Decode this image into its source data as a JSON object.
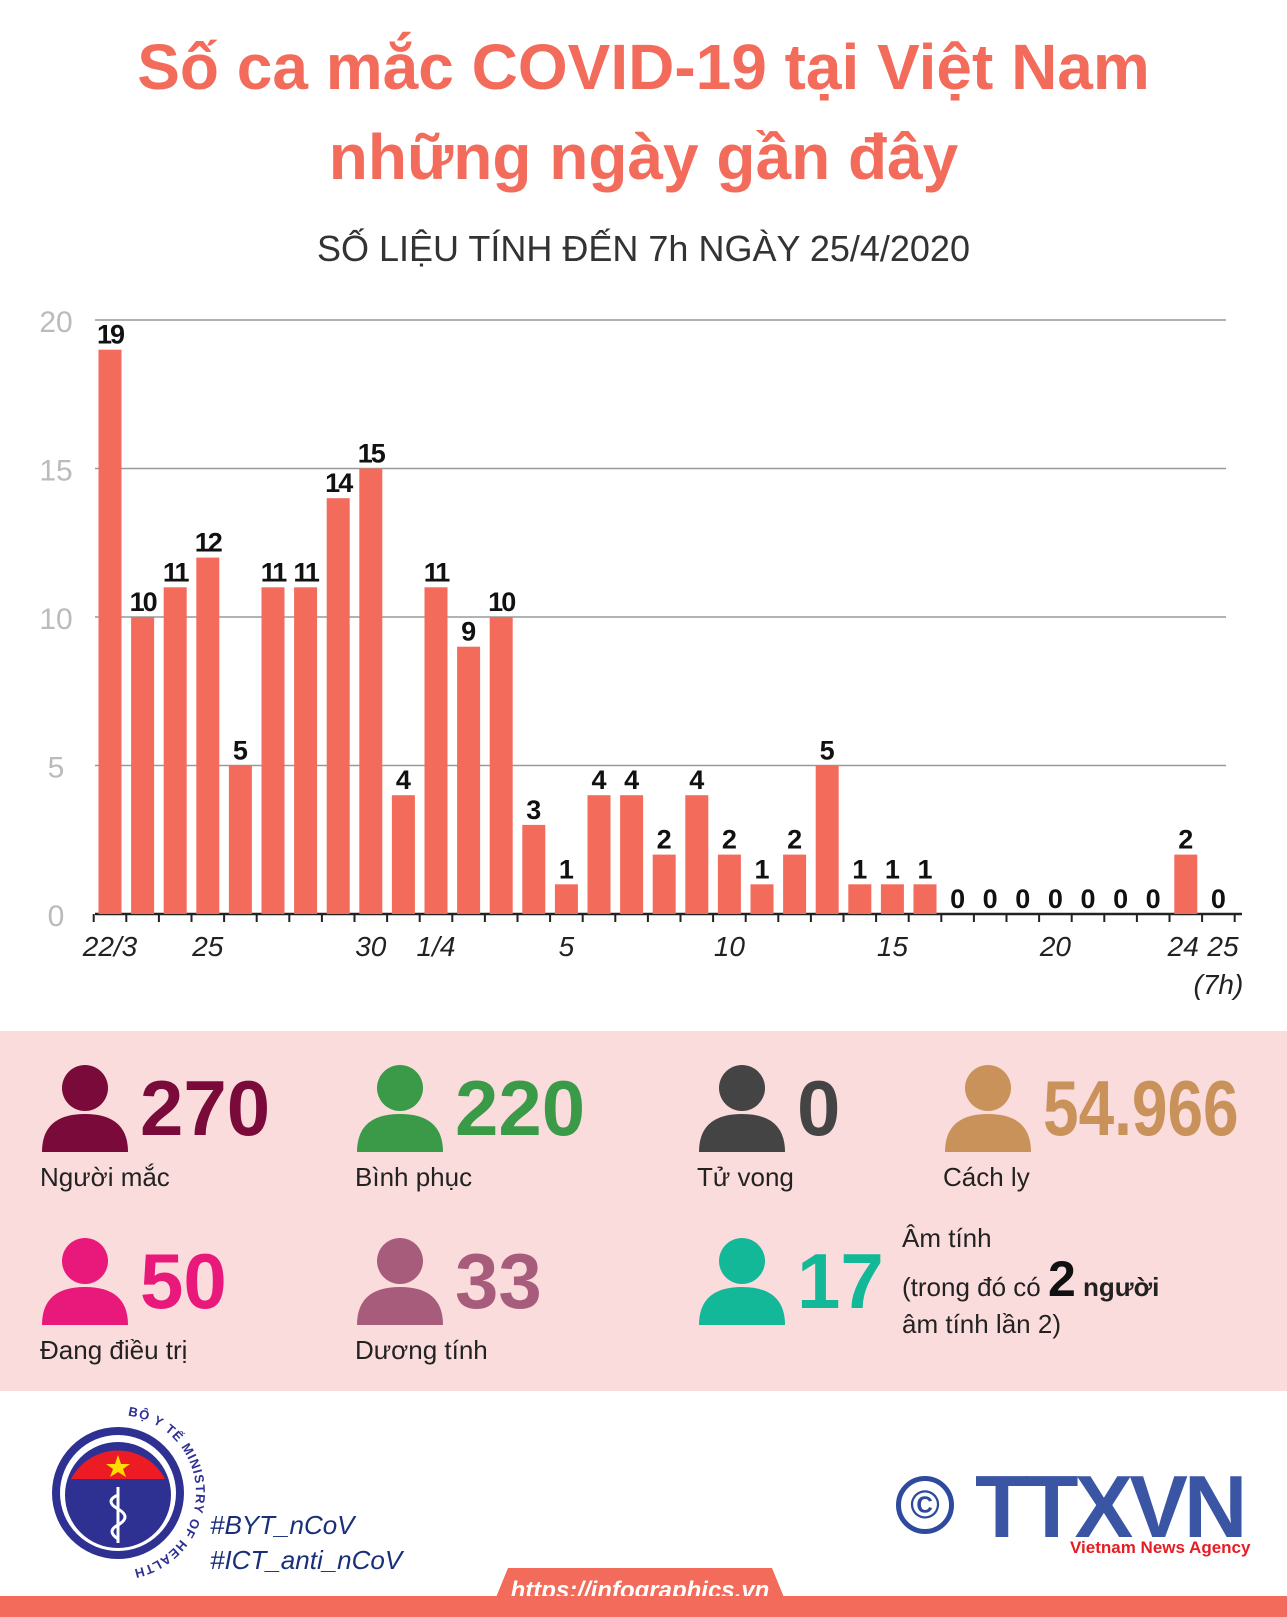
{
  "title_line1": "Số ca mắc COVID-19 tại Việt Nam",
  "title_line2": "những ngày gần đây",
  "subtitle": "SỐ LIỆU TÍNH ĐẾN 7h NGÀY 25/4/2020",
  "chart_data": {
    "type": "bar",
    "categories": [
      "22/3",
      "23/3",
      "24/3",
      "25/3",
      "26/3",
      "27/3",
      "28/3",
      "29/3",
      "30/3",
      "31/3",
      "1/4",
      "2/4",
      "3/4",
      "4/4",
      "5/4",
      "6/4",
      "7/4",
      "8/4",
      "9/4",
      "10/4",
      "11/4",
      "12/4",
      "13/4",
      "14/4",
      "15/4",
      "16/4",
      "17/4",
      "18/4",
      "19/4",
      "20/4",
      "21/4",
      "22/4",
      "23/4",
      "24/4",
      "25/4 (7h)"
    ],
    "values": [
      19,
      10,
      11,
      12,
      5,
      11,
      11,
      14,
      15,
      4,
      11,
      9,
      10,
      3,
      1,
      4,
      4,
      2,
      4,
      2,
      1,
      2,
      5,
      1,
      1,
      1,
      0,
      0,
      0,
      0,
      0,
      0,
      0,
      2,
      0
    ],
    "x_tick_labels": [
      {
        "index": 0,
        "label": "22/3"
      },
      {
        "index": 3,
        "label": "25"
      },
      {
        "index": 8,
        "label": "30"
      },
      {
        "index": 10,
        "label": "1/4"
      },
      {
        "index": 14,
        "label": "5"
      },
      {
        "index": 19,
        "label": "10"
      },
      {
        "index": 24,
        "label": "15"
      },
      {
        "index": 29,
        "label": "20"
      },
      {
        "index": 33,
        "label": "24"
      },
      {
        "index": 34,
        "label": "25"
      }
    ],
    "last_note": "(7h)",
    "y_ticks": [
      0,
      5,
      10,
      15,
      20
    ],
    "ylim": [
      0,
      20
    ],
    "grid": true,
    "bar_color": "#f26b5b"
  },
  "stats": [
    {
      "value": "270",
      "label": "Người mắc",
      "color": "#7a0a3a"
    },
    {
      "value": "220",
      "label": "Bình phục",
      "color": "#3a9a48"
    },
    {
      "value": "0",
      "label": "Tử vong",
      "color": "#444444"
    },
    {
      "value": "54.966",
      "label": "Cách ly",
      "color": "#c9925a"
    },
    {
      "value": "50",
      "label": "Đang điều trị",
      "color": "#e8197a"
    },
    {
      "value": "33",
      "label": "Dương tính",
      "color": "#a85c7c"
    },
    {
      "value": "17",
      "label": "Âm tính",
      "color": "#12b898",
      "note_pre": "(trong đó có",
      "note_num": "2",
      "note_post": "người",
      "note_line2": "âm tính lần 2)"
    }
  ],
  "footer": {
    "moh_logo_text": "BỘ Y TẾ MINISTRY OF HEALTH",
    "hashtag1": "#BYT_nCoV",
    "hashtag2": "#ICT_anti_nCoV",
    "copyright": "©",
    "agency_logo": "TTXVN",
    "agency_name": "Vietnam News Agency",
    "url": "https://infographics.vn"
  }
}
